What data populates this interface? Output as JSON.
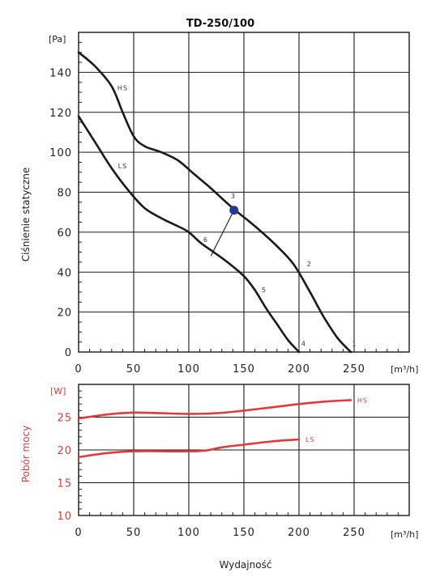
{
  "chart_data": [
    {
      "type": "line",
      "title": "TD-250/100",
      "xlabel": "",
      "ylabel": "Ciśnienie statyczne",
      "x_unit": "[m³/h]",
      "y_unit": "[Pa]",
      "xlim": [
        0,
        300
      ],
      "ylim": [
        0,
        160
      ],
      "x_ticks": [
        "0",
        "50",
        "100",
        "150",
        "200",
        "250"
      ],
      "y_ticks": [
        "0",
        "20",
        "40",
        "60",
        "80",
        "100",
        "120",
        "140"
      ],
      "grid": true,
      "series": [
        {
          "name": "HS",
          "color": "#1a1a1a",
          "x": [
            0,
            15,
            30,
            40,
            50,
            60,
            75,
            90,
            105,
            120,
            140,
            160,
            180,
            195,
            210,
            222,
            235,
            247
          ],
          "y": [
            150,
            143,
            133,
            120,
            108,
            103,
            100,
            96,
            89,
            82,
            72,
            63,
            53,
            44,
            30,
            18,
            7,
            0
          ]
        },
        {
          "name": "LS",
          "color": "#1a1a1a",
          "x": [
            0,
            15,
            30,
            45,
            60,
            75,
            90,
            100,
            110,
            120,
            135,
            150,
            160,
            170,
            180,
            190,
            200
          ],
          "y": [
            118,
            105,
            92,
            81,
            72,
            67,
            63,
            60,
            55,
            51,
            45,
            38,
            31,
            22,
            14,
            6,
            0
          ]
        }
      ],
      "working_point": {
        "label": "3",
        "x": 141,
        "y": 71,
        "color": "#1f3a8f"
      },
      "system_line": {
        "label": "6",
        "from": [
          141,
          71
        ],
        "to": [
          120,
          48
        ]
      },
      "point_labels": [
        {
          "label": "1",
          "x": 250,
          "y": 3
        },
        {
          "label": "2",
          "x": 209,
          "y": 43
        },
        {
          "label": "3",
          "x": 140,
          "y": 77
        },
        {
          "label": "4",
          "x": 204,
          "y": 3
        },
        {
          "label": "5",
          "x": 168,
          "y": 30
        },
        {
          "label": "6",
          "x": 115,
          "y": 55
        }
      ],
      "curve_labels": [
        {
          "label": "HS",
          "x": 40,
          "y": 131
        },
        {
          "label": "LS",
          "x": 40,
          "y": 92
        }
      ]
    },
    {
      "type": "line",
      "title": "",
      "xlabel": "Wydajność",
      "ylabel": "Pobór mocy",
      "x_unit": "[m³/h]",
      "y_unit": "[W]",
      "xlim": [
        0,
        300
      ],
      "ylim": [
        10,
        30
      ],
      "x_ticks": [
        "0",
        "50",
        "100",
        "150",
        "200",
        "250"
      ],
      "y_ticks": [
        "10",
        "15",
        "20",
        "25"
      ],
      "grid": true,
      "series": [
        {
          "name": "HS",
          "color": "#e03a3a",
          "x": [
            0,
            25,
            50,
            75,
            100,
            125,
            150,
            175,
            200,
            225,
            247
          ],
          "y": [
            24.8,
            25.4,
            25.7,
            25.6,
            25.5,
            25.6,
            26.0,
            26.5,
            27.0,
            27.4,
            27.6
          ]
        },
        {
          "name": "LS",
          "color": "#e03a3a",
          "x": [
            0,
            25,
            50,
            75,
            100,
            115,
            130,
            150,
            175,
            200
          ],
          "y": [
            18.9,
            19.5,
            19.8,
            19.8,
            19.8,
            19.9,
            20.4,
            20.8,
            21.3,
            21.6
          ]
        }
      ]
    }
  ]
}
